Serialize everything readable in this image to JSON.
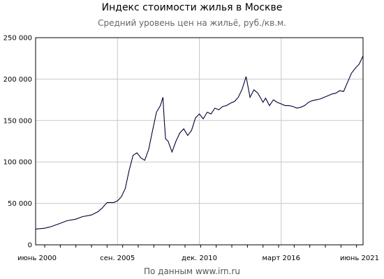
{
  "chart_data": {
    "type": "line",
    "title": "Индекс стоимости жилья в Москве",
    "subtitle": "Средний уровень цен на жильё, руб./кв.м.",
    "source": "По данным www.irn.ru",
    "ylim": [
      0,
      250000
    ],
    "xlim": [
      "2000-06",
      "2021-06"
    ],
    "grid": true,
    "y_ticks": [
      {
        "label": "250 000",
        "value": 250000
      },
      {
        "label": "200 000",
        "value": 200000
      },
      {
        "label": "150 000",
        "value": 150000
      },
      {
        "label": "100 000",
        "value": 100000
      },
      {
        "label": "50 000",
        "value": 50000
      },
      {
        "label": "0",
        "value": 0
      }
    ],
    "x_ticks": [
      {
        "label": "июнь 2000",
        "value": "2000-06"
      },
      {
        "label": "сен. 2005",
        "value": "2005-09"
      },
      {
        "label": "дек. 2010",
        "value": "2010-12"
      },
      {
        "label": "март 2016",
        "value": "2016-03"
      },
      {
        "label": "июнь 2021",
        "value": "2021-06"
      }
    ],
    "line_color": "#000033",
    "series": [
      {
        "x": [
          "2000-06",
          "2001-01",
          "2001-06",
          "2002-01",
          "2002-06",
          "2003-01",
          "2003-06",
          "2004-01",
          "2004-06",
          "2004-09",
          "2005-01",
          "2005-06",
          "2005-09",
          "2005-12",
          "2006-03",
          "2006-06",
          "2006-09",
          "2006-12",
          "2007-03",
          "2007-06",
          "2007-09",
          "2007-12",
          "2008-03",
          "2008-06",
          "2008-08",
          "2008-09",
          "2008-10",
          "2008-12",
          "2009-03",
          "2009-06",
          "2009-09",
          "2009-12",
          "2010-03",
          "2010-06",
          "2010-09",
          "2010-12",
          "2011-03",
          "2011-06",
          "2011-09",
          "2011-12",
          "2012-03",
          "2012-06",
          "2012-09",
          "2012-12",
          "2013-03",
          "2013-06",
          "2013-09",
          "2013-12",
          "2014-03",
          "2014-06",
          "2014-09",
          "2014-12",
          "2015-01",
          "2015-03",
          "2015-06",
          "2015-09",
          "2015-12",
          "2016-03",
          "2016-06",
          "2016-09",
          "2016-12",
          "2017-03",
          "2017-06",
          "2017-09",
          "2017-12",
          "2018-03",
          "2018-06",
          "2018-09",
          "2018-12",
          "2019-03",
          "2019-06",
          "2019-09",
          "2019-12",
          "2020-03",
          "2020-06",
          "2020-09",
          "2020-12",
          "2021-03",
          "2021-06"
        ],
        "y": [
          19000,
          20000,
          22000,
          26000,
          29000,
          31000,
          34000,
          36000,
          40000,
          44000,
          51000,
          51000,
          53000,
          58000,
          68000,
          90000,
          108000,
          111000,
          105000,
          102000,
          115000,
          138000,
          160000,
          168000,
          178000,
          150000,
          128000,
          125000,
          112000,
          125000,
          135000,
          140000,
          132000,
          138000,
          153000,
          158000,
          152000,
          160000,
          158000,
          165000,
          163000,
          167000,
          168000,
          171000,
          173000,
          178000,
          188000,
          203000,
          178000,
          187000,
          183000,
          175000,
          172000,
          177000,
          168000,
          175000,
          172000,
          170000,
          168000,
          168000,
          167000,
          165000,
          166000,
          168000,
          172000,
          174000,
          175000,
          176000,
          178000,
          180000,
          182000,
          183000,
          186000,
          185000,
          196000,
          207000,
          213000,
          218000,
          228000
        ]
      }
    ]
  }
}
